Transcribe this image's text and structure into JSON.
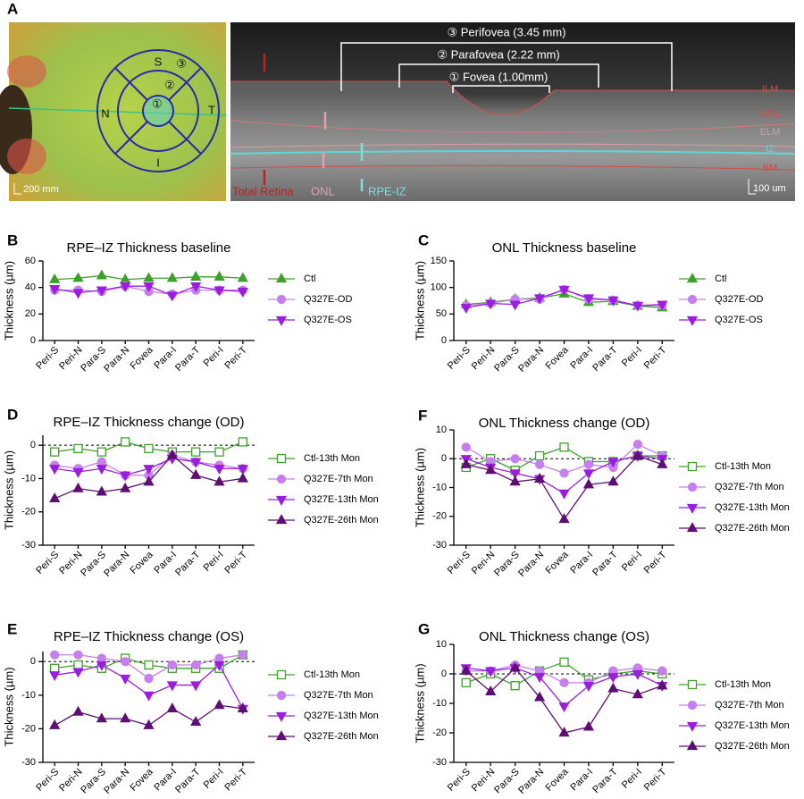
{
  "panel_a": {
    "letter": "A",
    "fundus": {
      "labels": [
        "S",
        "N",
        "T",
        "I"
      ],
      "rings": [
        "③",
        "②",
        "①"
      ],
      "scale": "200 mm"
    },
    "oct": {
      "brackets": [
        "③ Perifovea (3.45 mm)",
        "② Parafovea (2.22 mm)",
        "① Fovea (1.00mm)"
      ],
      "layers": [
        "ILM",
        "OPL",
        "ELM",
        "IZ",
        "BM"
      ],
      "arrows": [
        "Total Retina",
        "ONL",
        "RPE-IZ"
      ],
      "scale": "100 um"
    }
  },
  "chart_data": [
    {
      "type": "line",
      "letter": "B",
      "title": "RPE–IZ Thickness baseline",
      "ylabel": "Thickness (µm)",
      "categories": [
        "Peri-S",
        "Peri-N",
        "Para-S",
        "Para-N",
        "Fovea",
        "Para-I",
        "Para-T",
        "Peri-I",
        "Peri-T"
      ],
      "ylim": [
        0,
        60
      ],
      "yticks": [
        0,
        20,
        40,
        60
      ],
      "series": [
        {
          "name": "Ctl",
          "color": "#3fa02c",
          "marker": "triangle-up",
          "values": [
            46,
            47,
            49,
            46,
            47,
            47,
            48,
            48,
            47
          ]
        },
        {
          "name": "Q327E-OD",
          "color": "#c77ff0",
          "marker": "circle",
          "values": [
            38,
            38,
            37,
            41,
            37,
            35,
            38,
            38,
            38
          ]
        },
        {
          "name": "Q327E-OS",
          "color": "#9b1de0",
          "marker": "triangle-down",
          "values": [
            39,
            36,
            38,
            41,
            41,
            34,
            41,
            38,
            37
          ]
        }
      ]
    },
    {
      "type": "line",
      "letter": "C",
      "title": "ONL Thickness baseline",
      "ylabel": "Thickness (µm)",
      "categories": [
        "Peri-S",
        "Peri-N",
        "Para-S",
        "Para-N",
        "Fovea",
        "Para-I",
        "Para-T",
        "Peri-I",
        "Peri-T"
      ],
      "ylim": [
        0,
        150
      ],
      "yticks": [
        0,
        50,
        100,
        150
      ],
      "series": [
        {
          "name": "Ctl",
          "color": "#3fa02c",
          "marker": "triangle-up",
          "values": [
            68,
            72,
            78,
            80,
            88,
            72,
            74,
            65,
            62
          ]
        },
        {
          "name": "Q327E-OD",
          "color": "#c77ff0",
          "marker": "circle",
          "values": [
            66,
            70,
            78,
            78,
            96,
            78,
            76,
            66,
            66
          ]
        },
        {
          "name": "Q327E-OS",
          "color": "#9b1de0",
          "marker": "triangle-down",
          "values": [
            62,
            70,
            68,
            80,
            96,
            80,
            76,
            66,
            68
          ]
        }
      ]
    },
    {
      "type": "line",
      "letter": "D",
      "title": "RPE–IZ Thickness change (OD)",
      "ylabel": "Thickness (µm)",
      "categories": [
        "Peri-S",
        "Peri-N",
        "Para-S",
        "Para-N",
        "Fovea",
        "Para-I",
        "Para-T",
        "Peri-I",
        "Peri-T"
      ],
      "ylim": [
        -30,
        3
      ],
      "yticks": [
        -30,
        -20,
        -10,
        0
      ],
      "hline": 0,
      "series": [
        {
          "name": "Ctl-13th Mon",
          "color": "#3fa02c",
          "marker": "square-open",
          "values": [
            -2,
            -1,
            -2,
            1,
            -1,
            -2,
            -2,
            -2,
            1
          ]
        },
        {
          "name": "Q327E-7th Mon",
          "color": "#c77ff0",
          "marker": "circle",
          "values": [
            -6,
            -7,
            -5,
            -9,
            -9,
            -3,
            -5,
            -6,
            -7
          ]
        },
        {
          "name": "Q327E-13th Mon",
          "color": "#9b1de0",
          "marker": "triangle-down",
          "values": [
            -7,
            -8,
            -7,
            -9,
            -7,
            -4,
            -5,
            -7,
            -7
          ]
        },
        {
          "name": "Q327E-26th Mon",
          "color": "#5e0f72",
          "marker": "triangle-up",
          "values": [
            -16,
            -13,
            -14,
            -13,
            -11,
            -3,
            -9,
            -11,
            -10
          ]
        }
      ]
    },
    {
      "type": "line",
      "letter": "F",
      "title": "ONL Thickness change (OD)",
      "ylabel": "Thickness (µm)",
      "categories": [
        "Peri-S",
        "Peri-N",
        "Para-S",
        "Para-N",
        "Fovea",
        "Para-I",
        "Para-T",
        "Peri-I",
        "Peri-T"
      ],
      "ylim": [
        -30,
        10
      ],
      "yticks": [
        -30,
        -20,
        -10,
        0,
        10
      ],
      "hline": 0,
      "series": [
        {
          "name": "Ctl-13th Mon",
          "color": "#3fa02c",
          "marker": "square-open",
          "values": [
            -3,
            0,
            -4,
            1,
            4,
            -1,
            -1,
            1,
            1
          ]
        },
        {
          "name": "Q327E-7th Mon",
          "color": "#c77ff0",
          "marker": "circle",
          "values": [
            4,
            -1,
            0,
            -2,
            -5,
            -2,
            -3,
            5,
            1
          ]
        },
        {
          "name": "Q327E-13th Mon",
          "color": "#9b1de0",
          "marker": "triangle-down",
          "values": [
            0,
            -3,
            -5,
            -7,
            -12,
            -5,
            -1,
            1,
            0
          ]
        },
        {
          "name": "Q327E-26th Mon",
          "color": "#5e0f72",
          "marker": "triangle-up",
          "values": [
            -2,
            -4,
            -8,
            -7,
            -21,
            -9,
            -8,
            1,
            -2
          ]
        }
      ]
    },
    {
      "type": "line",
      "letter": "E",
      "title": "RPE–IZ Thickness change (OS)",
      "ylabel": "Thickness (µm)",
      "categories": [
        "Peri-S",
        "Peri-N",
        "Para-S",
        "Para-N",
        "Fovea",
        "Para-I",
        "Para-T",
        "Peri-I",
        "Peri-T"
      ],
      "ylim": [
        -30,
        3
      ],
      "yticks": [
        -30,
        -20,
        -10,
        0
      ],
      "hline": 0,
      "series": [
        {
          "name": "Ctl-13th Mon",
          "color": "#3fa02c",
          "marker": "square-open",
          "values": [
            -2,
            -1,
            -2,
            1,
            -1,
            -2,
            -2,
            -2,
            2
          ]
        },
        {
          "name": "Q327E-7th Mon",
          "color": "#c77ff0",
          "marker": "circle",
          "values": [
            2,
            2,
            1,
            0,
            -5,
            -1,
            -1,
            1,
            2
          ]
        },
        {
          "name": "Q327E-13th Mon",
          "color": "#9b1de0",
          "marker": "triangle-down",
          "values": [
            -4,
            -3,
            -1,
            -5,
            -10,
            -7,
            -7,
            -1,
            -14
          ]
        },
        {
          "name": "Q327E-26th Mon",
          "color": "#5e0f72",
          "marker": "triangle-up",
          "values": [
            -19,
            -15,
            -17,
            -17,
            -19,
            -14,
            -18,
            -13,
            -14
          ]
        }
      ]
    },
    {
      "type": "line",
      "letter": "G",
      "title": "ONL Thickness change (OS)",
      "ylabel": "Thickness (µm)",
      "categories": [
        "Peri-S",
        "Peri-N",
        "Para-S",
        "Para-N",
        "Fovea",
        "Para-I",
        "Para-T",
        "Peri-I",
        "Peri-T"
      ],
      "ylim": [
        -30,
        10
      ],
      "yticks": [
        -30,
        -20,
        -10,
        0,
        10
      ],
      "hline": 0,
      "series": [
        {
          "name": "Ctl-13th Mon",
          "color": "#3fa02c",
          "marker": "square-open",
          "values": [
            -3,
            0,
            -4,
            1,
            4,
            -2,
            0,
            1,
            0
          ]
        },
        {
          "name": "Q327E-7th Mon",
          "color": "#c77ff0",
          "marker": "circle",
          "values": [
            1,
            1,
            3,
            1,
            -3,
            -3,
            1,
            2,
            1
          ]
        },
        {
          "name": "Q327E-13th Mon",
          "color": "#9b1de0",
          "marker": "triangle-down",
          "values": [
            2,
            1,
            2,
            -1,
            -11,
            -4,
            -1,
            0,
            -4
          ]
        },
        {
          "name": "Q327E-26th Mon",
          "color": "#5e0f72",
          "marker": "triangle-up",
          "values": [
            1,
            -6,
            2,
            -8,
            -20,
            -18,
            -5,
            -7,
            -4
          ]
        }
      ]
    }
  ]
}
